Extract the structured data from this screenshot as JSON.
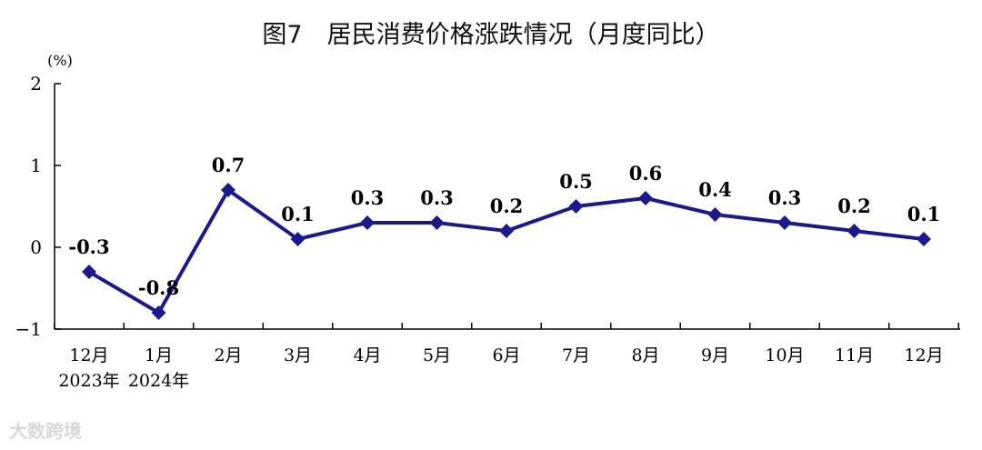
{
  "chart_data": {
    "type": "line",
    "title": "图7　居民消费价格涨跌情况（月度同比）",
    "ylabel": "(%)",
    "xlabel": "",
    "ylim": [
      -1,
      2
    ],
    "yticks": [
      "2",
      "1",
      "0",
      "−1"
    ],
    "categories": [
      "12月",
      "1月",
      "2月",
      "3月",
      "4月",
      "5月",
      "6月",
      "7月",
      "8月",
      "9月",
      "10月",
      "11月",
      "12月"
    ],
    "year_labels": [
      "2023年",
      "2024年"
    ],
    "series": [
      {
        "values": [
          -0.3,
          -0.8,
          0.7,
          0.1,
          0.3,
          0.3,
          0.2,
          0.5,
          0.6,
          0.4,
          0.3,
          0.2,
          0.1
        ]
      }
    ],
    "data_labels": [
      "-0.3",
      "-0.8",
      "0.7",
      "0.1",
      "0.3",
      "0.3",
      "0.2",
      "0.5",
      "0.6",
      "0.4",
      "0.3",
      "0.2",
      "0.1"
    ],
    "line_color": "#1a1a8c",
    "grid": false
  },
  "watermark": "大数跨境"
}
